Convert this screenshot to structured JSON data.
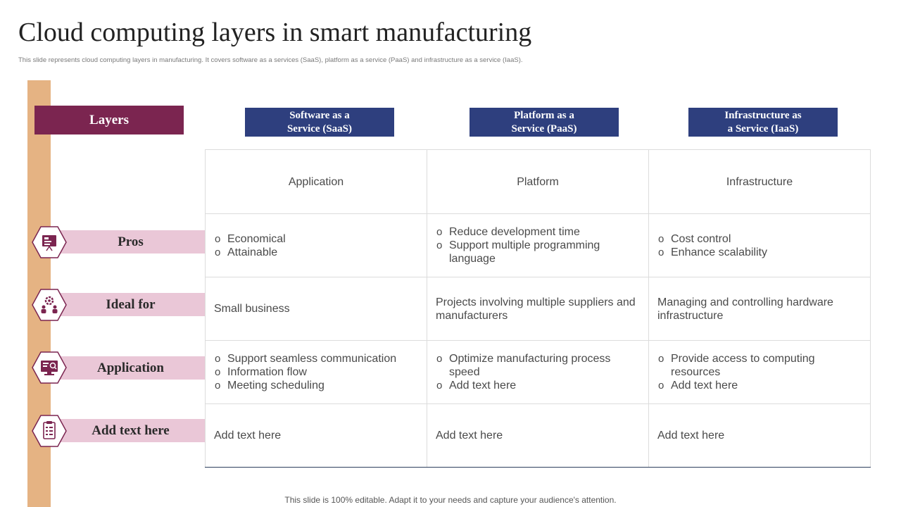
{
  "title": "Cloud computing layers in smart manufacturing",
  "subtitle": "This slide represents cloud computing layers in manufacturing. It covers software as a services (SaaS), platform as a service (PaaS) and infrastructure as a service (IaaS).",
  "layers_label": "Layers",
  "columns": [
    {
      "line1": "Software as a",
      "line2": "Service (SaaS)"
    },
    {
      "line1": "Platform as a",
      "line2": "Service (PaaS)"
    },
    {
      "line1": "Infrastructure as",
      "line2": "a Service (IaaS)"
    }
  ],
  "rows": [
    {
      "label": "Pros",
      "icon": "presentation-icon"
    },
    {
      "label": "Ideal for",
      "icon": "gear-people-icon"
    },
    {
      "label": "Application",
      "icon": "monitor-search-icon"
    },
    {
      "label": "Add text here",
      "icon": "checklist-icon"
    }
  ],
  "table": {
    "header": [
      "Application",
      "Platform",
      "Infrastructure"
    ],
    "pros": [
      [
        "Economical",
        "Attainable"
      ],
      [
        "Reduce development time",
        "Support multiple programming language"
      ],
      [
        "Cost control",
        "Enhance scalability"
      ]
    ],
    "ideal_for": [
      "Small business",
      "Projects involving multiple suppliers and manufacturers",
      "Managing and controlling hardware infrastructure"
    ],
    "application": [
      [
        "Support seamless communication",
        "Information flow",
        "Meeting scheduling"
      ],
      [
        "Optimize manufacturing process speed",
        "Add text here"
      ],
      [
        "Provide access to computing resources",
        "Add text here"
      ]
    ],
    "add_text": [
      "Add text here",
      "Add text here",
      "Add text here"
    ]
  },
  "footer": "This slide is 100% editable. Adapt it to your needs and capture your audience's attention.",
  "colors": {
    "accent": "#7b2550",
    "header_blue": "#2e3f7e",
    "bar": "#e5b383",
    "label_pink": "#eac7d7"
  }
}
